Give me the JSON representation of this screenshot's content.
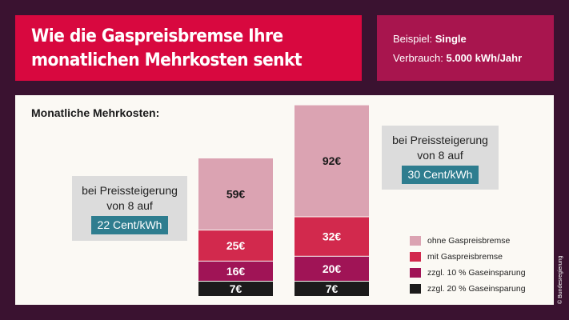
{
  "header": {
    "title_line1": "Wie die Gaspreisbremse Ihre",
    "title_line2": "monatlichen Mehrkosten senkt"
  },
  "info": {
    "example_label": "Beispiel:",
    "example_value": "Single",
    "consumption_label": "Verbrauch:",
    "consumption_value": "5.000 kWh/Jahr"
  },
  "credit": "© Bundesregierung",
  "colors": {
    "title_bg": "#d8083f",
    "info_bg": "#a8154e",
    "page_bg": "#3a1230",
    "ohne": "#dba3b2",
    "mit": "#d2294d",
    "zehn": "#a01456",
    "zwanzig": "#1c1b1b",
    "price_highlight": "#2e7d8f"
  },
  "chart_data": {
    "type": "bar",
    "title": "Monatliche Mehrkosten:",
    "stacked": true,
    "unit": "€",
    "categories": [
      {
        "callout_line1": "bei Preissteigerung",
        "callout_line2": "von 8 auf",
        "price": "22 Cent/kWh"
      },
      {
        "callout_line1": "bei Preissteigerung",
        "callout_line2": "von 8 auf",
        "price": "30 Cent/kWh"
      }
    ],
    "series": [
      {
        "name": "ohne Gaspreisbremse",
        "color": "#dba3b2",
        "values": [
          59,
          92
        ]
      },
      {
        "name": "mit Gaspreisbremse",
        "color": "#d2294d",
        "values": [
          25,
          32
        ]
      },
      {
        "name": "zzgl. 10 % Gaseinsparung",
        "color": "#a01456",
        "values": [
          16,
          20
        ]
      },
      {
        "name": "zzgl. 20 % Gaseinsparung",
        "color": "#1c1b1b",
        "values": [
          7,
          7
        ]
      }
    ]
  }
}
